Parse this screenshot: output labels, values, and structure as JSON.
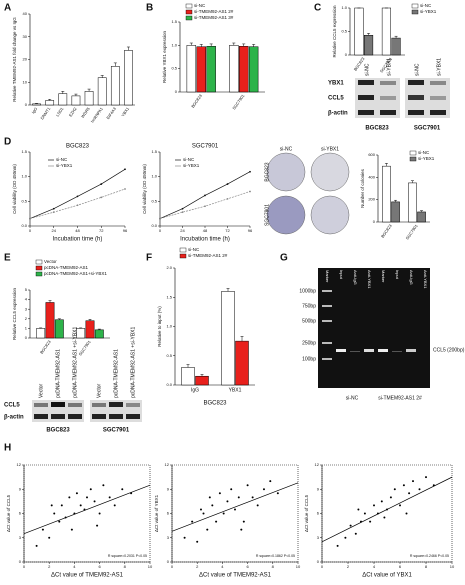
{
  "letters": [
    "A",
    "B",
    "C",
    "D",
    "E",
    "F",
    "G",
    "H"
  ],
  "blot_c": {
    "rows": [
      "YBX1",
      "CCL5",
      "β-actin"
    ],
    "lanes": [
      "si-NC",
      "si-YBX1",
      "si-NC",
      "si-YBX1"
    ],
    "cells": [
      "BGC823",
      "SGC7901"
    ]
  },
  "colony": {
    "cols": [
      "si-NC",
      "si-YBX1"
    ],
    "rows": [
      "BGC823",
      "SGC7901"
    ]
  },
  "blot_e": {
    "rows": [
      "CCL5",
      "β-actin"
    ],
    "lanes": [
      "Vector",
      "pcDNA-TMEM92-AS1",
      "pcDNA-TMEM92-AS1 +si-YBX1",
      "Vector",
      "pcDNA-TMEM92-AS1",
      "pcDNA-TMEM92-AS1 +si-YBX1"
    ],
    "cells": [
      "BGC823",
      "SGC7901"
    ]
  },
  "gel": {
    "lanes": [
      "Marker",
      "Input",
      "Anti-IgG",
      "Anti-YBX1",
      "Marker",
      "Input",
      "Anti-IgG",
      "Anti-YBX1"
    ],
    "sizes": [
      "1000bp",
      "750bp",
      "500bp",
      "250bp",
      "100bp"
    ],
    "band": "CCL5 (200bp)",
    "groups": [
      "si-NC",
      "si-TMEM92-AS1 2#"
    ]
  },
  "chart_data": [
    {
      "type": "bar",
      "ylabel": "Relative TMEM92-AS1 fold change vs IgG",
      "categories": [
        "IgG",
        "DNMT1",
        "LSD1",
        "EZH2",
        "WDR5",
        "hnRNPA1",
        "EIF4A3",
        "YBX1"
      ],
      "series": [
        {
          "color": "#ffffff",
          "values": [
            0.5,
            2,
            5,
            4,
            6,
            12,
            17,
            24
          ],
          "errors": [
            0.2,
            0.5,
            1,
            0.8,
            1,
            1,
            1.5,
            1.5
          ]
        }
      ],
      "ylim": [
        0,
        40
      ],
      "yticks": [
        0,
        10,
        20,
        30,
        40
      ]
    },
    {
      "type": "bar",
      "ylabel": "Relative YBX1 expression",
      "categories": [
        "BGC823",
        "SGC7901"
      ],
      "series": [
        {
          "name": "si-NC",
          "color": "#ffffff",
          "values": [
            1,
            1
          ],
          "errors": [
            0.05,
            0.05
          ]
        },
        {
          "name": "si-TMEM92-AS1 2#",
          "color": "#e8201c",
          "values": [
            0.97,
            0.98
          ],
          "errors": [
            0.05,
            0.05
          ]
        },
        {
          "name": "si-TMEM92-AS1 3#",
          "color": "#2db34a",
          "values": [
            0.98,
            0.97
          ],
          "errors": [
            0.05,
            0.05
          ]
        }
      ],
      "ylim": [
        0,
        1.5
      ],
      "yticks": [
        0,
        0.5,
        {
          "value": 1,
          "label": "1.0"
        },
        1.5
      ]
    },
    {
      "type": "bar",
      "ylabel": "Relative CCL5 expression",
      "categories": [
        "BGC823",
        "SGC7901"
      ],
      "series": [
        {
          "name": "si-NC",
          "color": "#ffffff",
          "values": [
            1,
            1
          ],
          "errors": [
            0,
            0
          ]
        },
        {
          "name": "si-YBX1",
          "color": "#777777",
          "values": [
            0.42,
            0.36
          ],
          "errors": [
            0.04,
            0.04
          ]
        }
      ],
      "ylim": [
        0,
        1
      ],
      "yticks": [
        0,
        0.5,
        {
          "value": 1,
          "label": "1.0"
        }
      ]
    },
    {
      "type": "line",
      "title": "BGC823",
      "xlabel": "Incubation time (h)",
      "ylabel": "Cell viability (OD 450nm)",
      "x": [
        0,
        24,
        48,
        72,
        96
      ],
      "series": [
        {
          "name": "si-NC",
          "color": "#111111",
          "values": [
            0.15,
            0.35,
            0.6,
            0.85,
            1.15
          ]
        },
        {
          "name": "si-YBX1",
          "color": "#888888",
          "values": [
            0.15,
            0.28,
            0.42,
            0.58,
            0.75
          ]
        }
      ],
      "xlim": [
        0,
        96
      ],
      "xticks": [
        0,
        24,
        48,
        72,
        96
      ],
      "ylim": [
        0,
        1.5
      ],
      "yticks": [
        {
          "value": 0,
          "label": "0.0"
        },
        0.5,
        {
          "value": 1,
          "label": "1.0"
        },
        1.5
      ]
    },
    {
      "type": "line",
      "title": "SGC7901",
      "xlabel": "Incubation time (h)",
      "ylabel": "Cell viability (OD 450nm)",
      "x": [
        0,
        24,
        48,
        72,
        96
      ],
      "series": [
        {
          "name": "si-NC",
          "color": "#111111",
          "values": [
            0.15,
            0.35,
            0.62,
            0.85,
            1.1
          ]
        },
        {
          "name": "si-YBX1",
          "color": "#888888",
          "values": [
            0.15,
            0.28,
            0.4,
            0.55,
            0.7
          ]
        }
      ],
      "xlim": [
        0,
        96
      ],
      "xticks": [
        0,
        24,
        48,
        72,
        96
      ],
      "ylim": [
        0,
        1.5
      ],
      "yticks": [
        {
          "value": 0,
          "label": "0.0"
        },
        0.5,
        {
          "value": 1,
          "label": "1.0"
        },
        1.5
      ]
    },
    {
      "type": "bar",
      "ylabel": "Number of colonies",
      "categories": [
        "BGC823",
        "SGC7901"
      ],
      "series": [
        {
          "name": "si-NC",
          "color": "#ffffff",
          "values": [
            500,
            350
          ],
          "errors": [
            25,
            20
          ]
        },
        {
          "name": "si-YBX1",
          "color": "#777777",
          "values": [
            180,
            90
          ],
          "errors": [
            15,
            12
          ]
        }
      ],
      "ylim": [
        0,
        600
      ],
      "yticks": [
        0,
        200,
        400,
        600
      ]
    },
    {
      "type": "bar",
      "ylabel": "Relative CCL5 expression",
      "categories": [
        "BGC823",
        "SGC7901"
      ],
      "series": [
        {
          "name": "Vector",
          "color": "#ffffff",
          "values": [
            1,
            1
          ],
          "errors": [
            0.05,
            0.05
          ]
        },
        {
          "name": "pcDNA-TMEM92-AS1",
          "color": "#e8201c",
          "values": [
            3.7,
            1.8
          ],
          "errors": [
            0.2,
            0.15
          ]
        },
        {
          "name": "pcDNA-TMEM92-AS1+si-YBX1",
          "color": "#2db34a",
          "values": [
            1.9,
            0.85
          ],
          "errors": [
            0.1,
            0.08
          ]
        }
      ],
      "ylim": [
        0,
        5
      ],
      "yticks": [
        0,
        1,
        2,
        3,
        4,
        5
      ]
    },
    {
      "type": "bar",
      "ylabel": "Relative to input (%)",
      "xlabel": "BGC823",
      "categories": [
        "IgG",
        "YBX1"
      ],
      "series": [
        {
          "name": "si-NC",
          "color": "#ffffff",
          "values": [
            0.3,
            1.6
          ],
          "errors": [
            0.05,
            0.05
          ]
        },
        {
          "name": "si-TMEM92-AS1 2#",
          "color": "#e8201c",
          "values": [
            0.15,
            0.75
          ],
          "errors": [
            0.03,
            0.08
          ]
        }
      ],
      "ylim": [
        0,
        2
      ],
      "yticks": [
        {
          "value": 0,
          "label": "0.0"
        },
        0.5,
        {
          "value": 1,
          "label": "1.0"
        },
        1.5,
        {
          "value": 2,
          "label": "2.0"
        }
      ]
    },
    {
      "type": "scatter",
      "xlabel": "ΔCt value of TMEM92-AS1",
      "ylabel": "ΔCt value of CCL5",
      "stats": "R square=0.2031 P<0.05",
      "x": [
        1,
        1.5,
        2,
        2.4,
        2.8,
        3,
        3.3,
        3.6,
        4,
        4.2,
        4.5,
        4.8,
        5,
        5.3,
        5.6,
        6,
        6.3,
        6.8,
        7.2,
        7.8,
        8.5,
        3.8,
        5.8,
        2.2
      ],
      "values": [
        2,
        4,
        3,
        6,
        5,
        7,
        5.5,
        8,
        6,
        8.5,
        7,
        6.5,
        8,
        9,
        7.5,
        6,
        9.5,
        8,
        7,
        9,
        8.5,
        4,
        4.5,
        7
      ],
      "trendline": {
        "x": [
          0,
          10
        ],
        "values": [
          3.5,
          9.5
        ]
      },
      "xlim": [
        0,
        10
      ],
      "xticks": [
        0,
        2,
        4,
        6,
        8,
        10
      ],
      "ylim": [
        0,
        12
      ],
      "yticks": [
        0,
        3,
        6,
        9,
        12
      ]
    },
    {
      "type": "scatter",
      "xlabel": "ΔCt value of TMEM92-AS1",
      "ylabel": "ΔCt value of YBX1",
      "stats": "R square=0.1862 P<0.05",
      "x": [
        1,
        1.6,
        2,
        2.5,
        2.8,
        3.2,
        3.5,
        3.8,
        4.1,
        4.4,
        4.7,
        5,
        5.3,
        5.7,
        6,
        6.4,
        6.8,
        7.3,
        7.8,
        8.4,
        3,
        5.5,
        2.3
      ],
      "values": [
        3,
        5,
        2.5,
        6,
        4,
        7,
        5,
        8.5,
        6,
        7.5,
        9,
        6.5,
        8,
        5,
        9.5,
        8,
        7,
        9,
        10,
        8.5,
        8,
        4,
        6.5
      ],
      "trendline": {
        "x": [
          0,
          10
        ],
        "values": [
          3.8,
          9.8
        ]
      },
      "xlim": [
        0,
        10
      ],
      "xticks": [
        0,
        2,
        4,
        6,
        8,
        10
      ],
      "ylim": [
        0,
        12
      ],
      "yticks": [
        0,
        3,
        6,
        9,
        12
      ]
    },
    {
      "type": "scatter",
      "xlabel": "ΔCt value of YBX1",
      "ylabel": "ΔCt value of CCL5",
      "stats": "R square=0.2466 P<0.05",
      "x": [
        1.2,
        1.8,
        2.2,
        2.6,
        3,
        3.3,
        3.7,
        4,
        4.3,
        4.6,
        5,
        5.3,
        5.6,
        6,
        6.3,
        6.7,
        7,
        7.5,
        8,
        8.6,
        4.8,
        6.5,
        2.8
      ],
      "values": [
        2,
        3,
        4.5,
        3.5,
        5,
        6,
        5,
        7,
        6,
        7.5,
        6.5,
        8,
        9,
        7,
        9.5,
        8.5,
        10,
        9,
        10.5,
        9.5,
        5.5,
        6,
        6.5
      ],
      "trendline": {
        "x": [
          0,
          10
        ],
        "values": [
          2.5,
          10.5
        ]
      },
      "xlim": [
        0,
        10
      ],
      "xticks": [
        0,
        2,
        4,
        6,
        8,
        10
      ],
      "ylim": [
        0,
        12
      ],
      "yticks": [
        0,
        3,
        6,
        9,
        12
      ]
    }
  ]
}
